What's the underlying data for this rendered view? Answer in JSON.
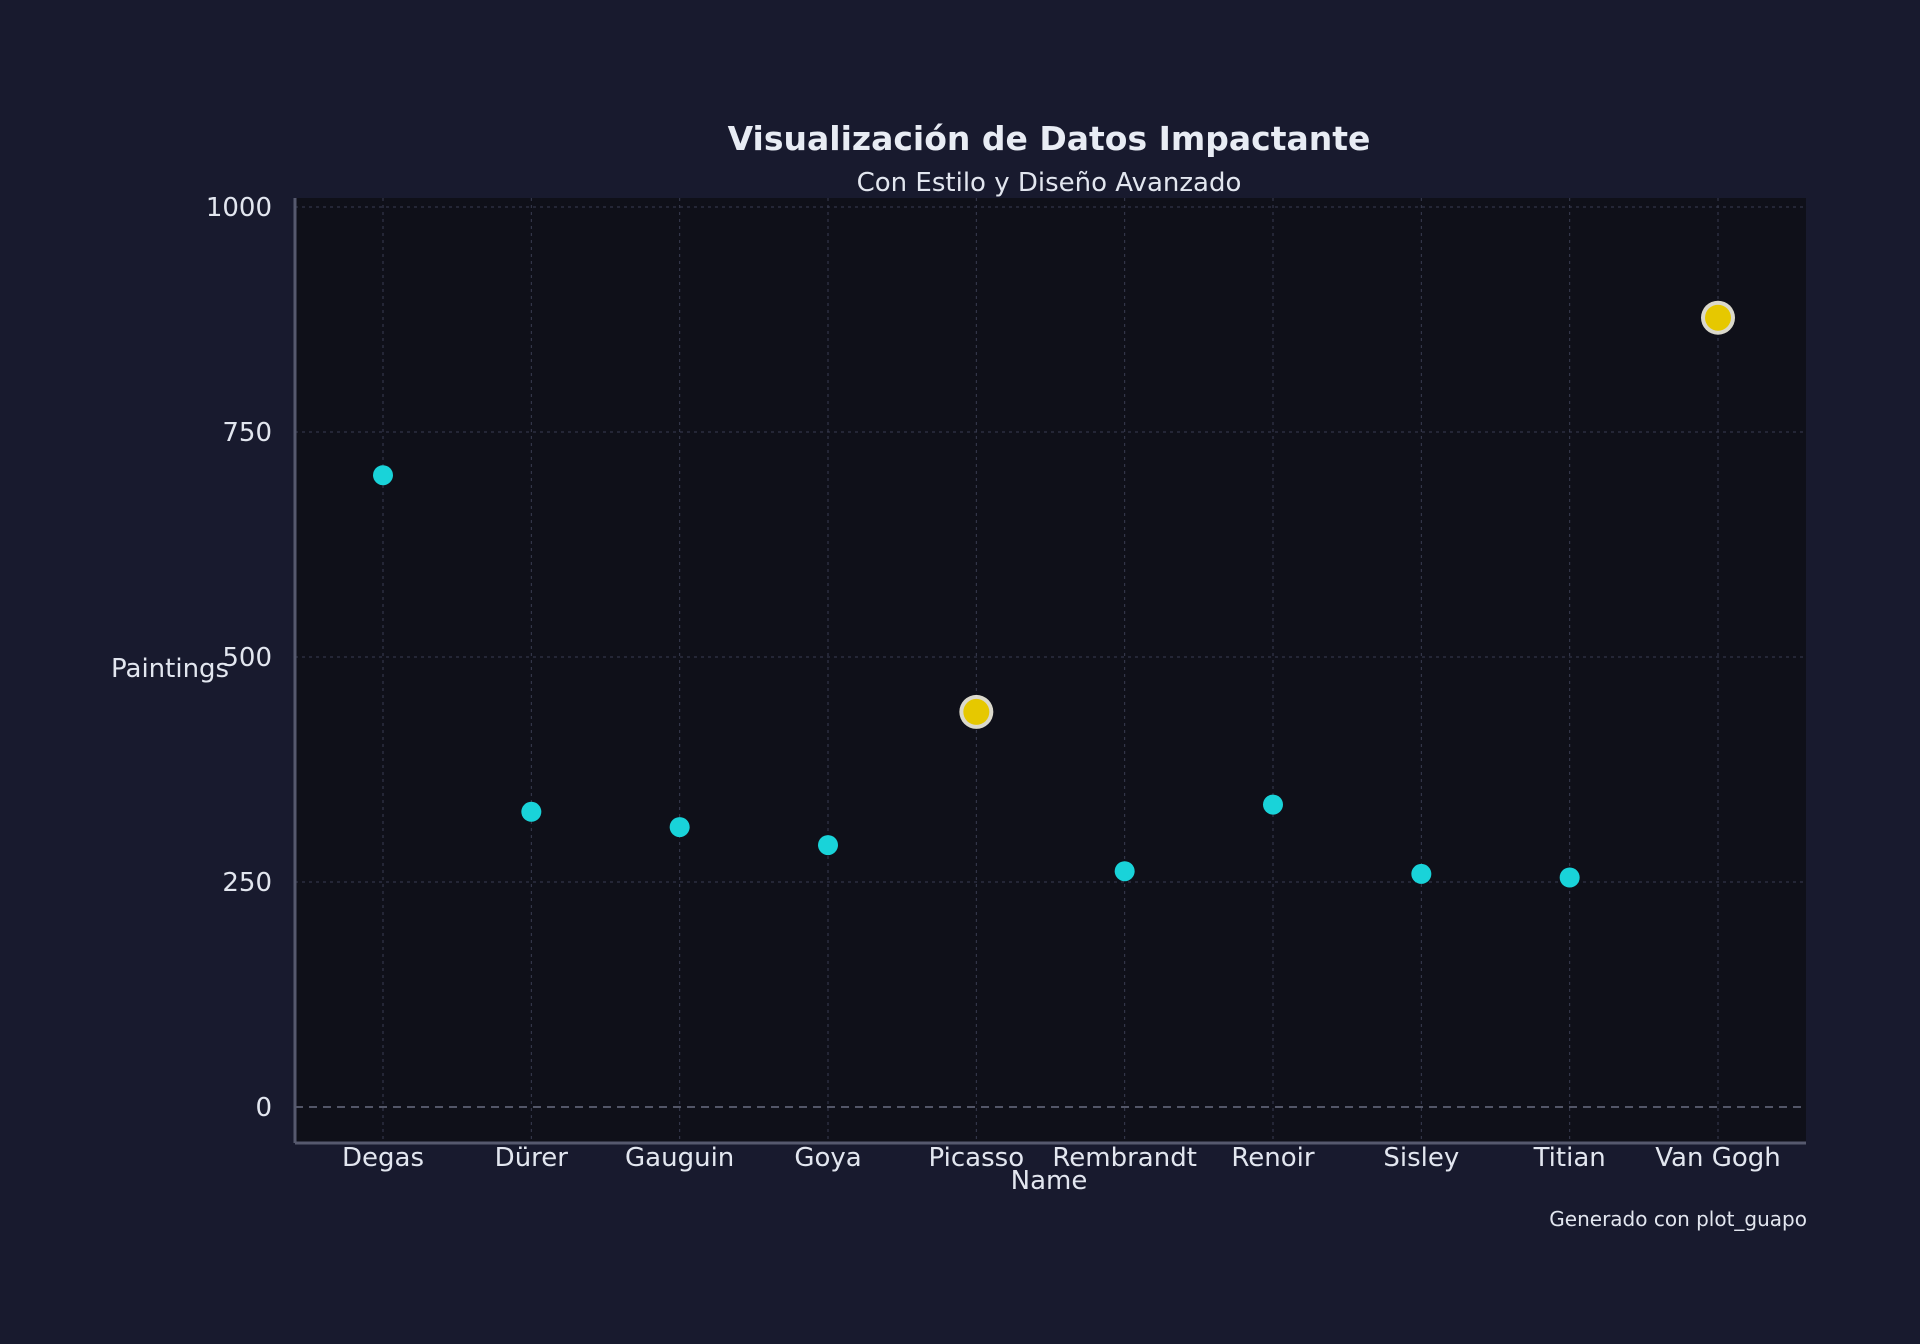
{
  "colors": {
    "background": "#181a2e",
    "plot_background": "#0f1019",
    "grid": "#3a3d52",
    "axis": "#56596e",
    "zero_line": "#6a6d82",
    "point": "#19d3d9",
    "highlight": "#e6c800",
    "highlight_stroke": "#f2f0e0",
    "text": "#e2e6ef"
  },
  "chart_data": {
    "type": "scatter",
    "title": "Visualización de Datos Impactante",
    "subtitle": "Con Estilo y Diseño Avanzado",
    "xlabel": "Name",
    "ylabel": "Paintings",
    "footer": "Generado con plot_guapo",
    "ylim": [
      -40,
      1010
    ],
    "yticks": [
      0,
      250,
      500,
      750,
      1000
    ],
    "grid": true,
    "categories": [
      "Degas",
      "Dürer",
      "Gauguin",
      "Goya",
      "Picasso",
      "Rembrandt",
      "Renoir",
      "Sisley",
      "Titian",
      "Van Gogh"
    ],
    "values": [
      702,
      328,
      311,
      291,
      439,
      262,
      336,
      259,
      255,
      877
    ],
    "highlighted": [
      "Picasso",
      "Van Gogh"
    ]
  }
}
